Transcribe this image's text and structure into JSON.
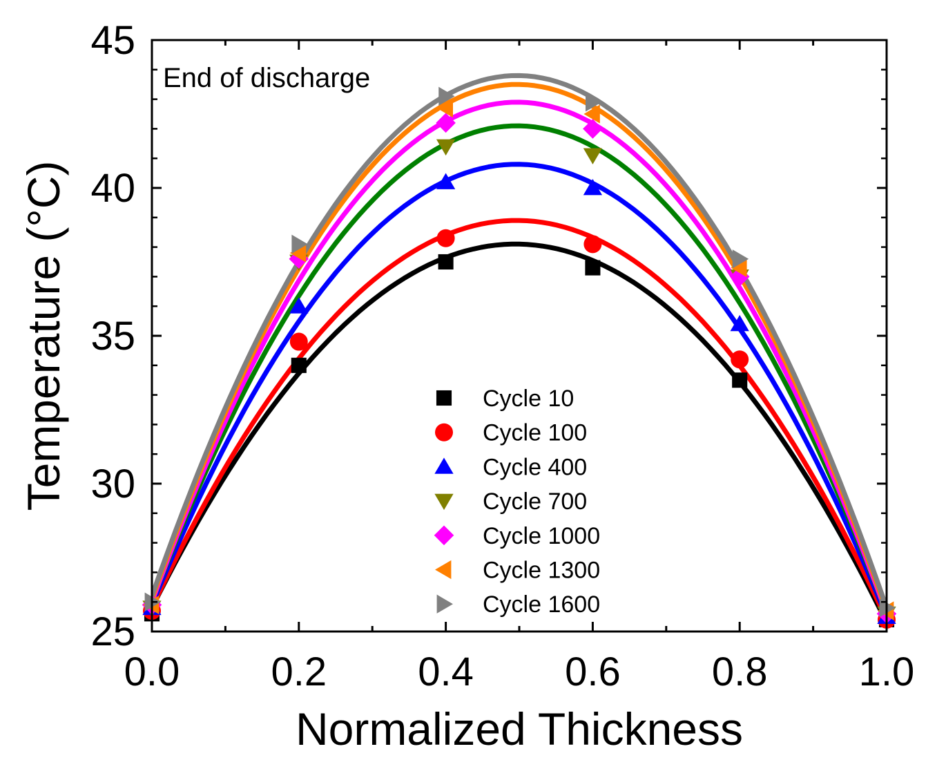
{
  "chart_data": {
    "type": "scatter",
    "title": "",
    "xlabel": "Normalized Thickness",
    "ylabel": "Temperature (°C)",
    "xlim": [
      0.0,
      1.0
    ],
    "ylim": [
      25,
      45
    ],
    "x_ticks": [
      0.0,
      0.2,
      0.4,
      0.6,
      0.8,
      1.0
    ],
    "x_tick_labels": [
      "0.0",
      "0.2",
      "0.4",
      "0.6",
      "0.8",
      "1.0"
    ],
    "y_ticks": [
      25,
      30,
      35,
      40,
      45
    ],
    "y_tick_labels": [
      "25",
      "30",
      "35",
      "40",
      "45"
    ],
    "grid": false,
    "legend_position": "center-right",
    "annotation": "End of discharge",
    "x": [
      0.0,
      0.2,
      0.4,
      0.6,
      0.8,
      1.0
    ],
    "series": [
      {
        "name": "Cycle 10",
        "marker": "square",
        "color": "#000000",
        "values": [
          25.6,
          34.0,
          37.5,
          37.3,
          33.5,
          25.4
        ],
        "fit_peak": 38.1,
        "fit_ends": [
          25.8,
          25.3
        ]
      },
      {
        "name": "Cycle 100",
        "marker": "circle",
        "color": "#ff0000",
        "values": [
          25.7,
          34.8,
          38.3,
          38.1,
          34.2,
          25.4
        ],
        "fit_peak": 38.9,
        "fit_ends": [
          25.8,
          25.4
        ]
      },
      {
        "name": "Cycle 400",
        "marker": "triangle-up",
        "color": "#0000ff",
        "values": [
          25.8,
          36.0,
          40.2,
          40.0,
          35.4,
          25.5
        ],
        "fit_peak": 40.8,
        "fit_ends": [
          25.9,
          25.5
        ]
      },
      {
        "name": "Cycle 700",
        "marker": "triangle-down",
        "color": "#808000",
        "values": [
          25.8,
          37.5,
          41.4,
          41.1,
          37.0,
          25.6
        ],
        "fit_peak": 42.1,
        "fit_ends": [
          26.0,
          25.6
        ],
        "fit_color": "#008000"
      },
      {
        "name": "Cycle 1000",
        "marker": "diamond",
        "color": "#ff00ff",
        "values": [
          25.9,
          37.6,
          42.2,
          42.0,
          37.0,
          25.6
        ],
        "fit_peak": 42.9,
        "fit_ends": [
          26.0,
          25.6
        ]
      },
      {
        "name": "Cycle 1300",
        "marker": "triangle-left",
        "color": "#ff8000",
        "values": [
          25.9,
          37.8,
          42.7,
          42.5,
          37.3,
          25.7
        ],
        "fit_peak": 43.5,
        "fit_ends": [
          26.1,
          25.7
        ]
      },
      {
        "name": "Cycle 1600",
        "marker": "triangle-right",
        "color": "#808080",
        "values": [
          26.0,
          38.1,
          43.1,
          42.9,
          37.6,
          25.8
        ],
        "fit_peak": 43.8,
        "fit_ends": [
          26.2,
          25.8
        ]
      }
    ]
  }
}
